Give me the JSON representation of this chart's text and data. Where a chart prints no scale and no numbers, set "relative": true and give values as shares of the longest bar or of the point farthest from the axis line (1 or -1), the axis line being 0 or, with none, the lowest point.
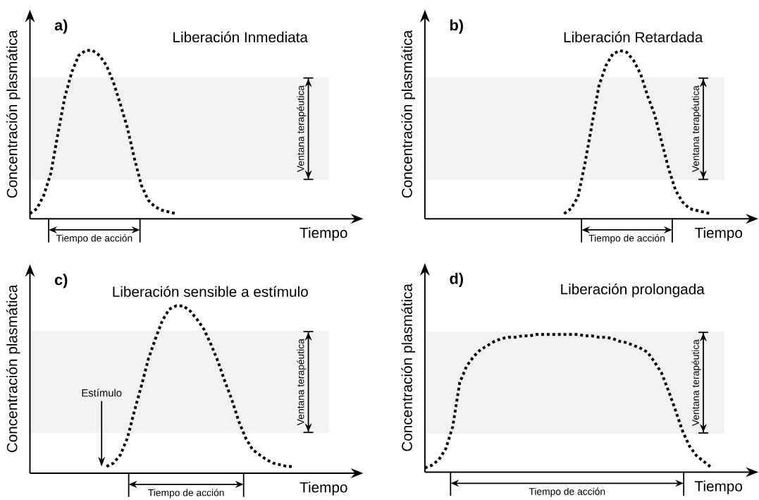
{
  "chart_data": [
    {
      "type": "line",
      "relative": true,
      "title": "Liberación Inmediata",
      "xlabel": "Tiempo",
      "ylabel": "Concentración plasmática",
      "color": "#000000",
      "line_style": "dotted",
      "categories": [
        null,
        null,
        null,
        null,
        null,
        null,
        null,
        null,
        null,
        null,
        null,
        null,
        null,
        null,
        null,
        null,
        null,
        null,
        null,
        null,
        null,
        null,
        null,
        null,
        null,
        null,
        null,
        null,
        null,
        null,
        null,
        null,
        null,
        null,
        null,
        null,
        null,
        null,
        null,
        null,
        null,
        null,
        null,
        null
      ],
      "values": [
        0.03,
        0.06,
        0.14,
        0.27,
        0.5,
        0.72,
        0.87,
        0.97,
        1.0,
        1.0,
        0.97,
        0.91,
        0.81,
        0.68,
        0.54,
        0.36,
        0.2,
        0.11,
        0.07,
        0.05,
        0.04,
        0.03,
        null,
        null,
        null,
        null,
        null,
        null,
        null,
        null,
        null,
        null,
        null,
        null,
        null,
        null,
        null,
        null,
        null,
        null,
        null,
        null,
        null,
        null
      ],
      "bands": [
        {
          "axis": "y",
          "from": 0.23,
          "to": 0.84,
          "label": "Ventana terapéutica",
          "color": "#f2f2f2"
        }
      ],
      "annotations": [
        "a)",
        "Tiempo de acción"
      ]
    },
    {
      "type": "line",
      "relative": true,
      "title": "Liberación Retardada",
      "xlabel": "Tiempo",
      "ylabel": "Concentración plasmática",
      "color": "#000000",
      "line_style": "dotted",
      "categories": [
        null,
        null,
        null,
        null,
        null,
        null,
        null,
        null,
        null,
        null,
        null,
        null,
        null,
        null,
        null,
        null,
        null,
        null,
        null,
        null,
        null,
        null,
        null,
        null,
        null,
        null,
        null,
        null,
        null,
        null,
        null,
        null,
        null,
        null,
        null,
        null,
        null,
        null,
        null,
        null,
        null,
        null,
        null,
        null
      ],
      "values": [
        null,
        null,
        null,
        null,
        null,
        null,
        null,
        null,
        null,
        null,
        null,
        null,
        null,
        null,
        null,
        null,
        null,
        null,
        null,
        null,
        0.03,
        0.06,
        0.13,
        0.33,
        0.56,
        0.79,
        0.91,
        0.98,
        1.0,
        0.99,
        0.94,
        0.86,
        0.73,
        0.62,
        0.46,
        0.3,
        0.17,
        0.1,
        0.06,
        0.05,
        0.04,
        0.03,
        null,
        null
      ],
      "bands": [
        {
          "axis": "y",
          "from": 0.23,
          "to": 0.84,
          "label": "Ventana terapéutica",
          "color": "#f2f2f2"
        }
      ],
      "annotations": [
        "b)",
        "Tiempo de acción"
      ]
    },
    {
      "type": "line",
      "relative": true,
      "title": "Liberación sensible a estímulo",
      "xlabel": "Tiempo",
      "ylabel": "Concentración plasmática",
      "color": "#000000",
      "line_style": "dotted",
      "categories": [
        null,
        null,
        null,
        null,
        null,
        null,
        null,
        null,
        null,
        null,
        null,
        null,
        null,
        null,
        null,
        null,
        null,
        null,
        null,
        null,
        null,
        null,
        null,
        null,
        null,
        null,
        null,
        null,
        null,
        null,
        null,
        null,
        null,
        null,
        null,
        null,
        null,
        null,
        null,
        null,
        null,
        null,
        null,
        null
      ],
      "values": [
        null,
        null,
        null,
        null,
        null,
        null,
        null,
        null,
        null,
        null,
        null,
        0.04,
        0.06,
        0.11,
        0.21,
        0.37,
        0.52,
        0.68,
        0.8,
        0.91,
        0.98,
        1.0,
        1.0,
        0.97,
        0.92,
        0.86,
        0.77,
        0.67,
        0.55,
        0.44,
        0.31,
        0.21,
        0.14,
        0.11,
        0.08,
        0.06,
        0.05,
        0.04,
        0.04,
        null,
        null,
        null,
        null,
        null
      ],
      "bands": [
        {
          "axis": "y",
          "from": 0.24,
          "to": 0.85,
          "label": "Ventana terapéutica",
          "color": "#f2f2f2"
        }
      ],
      "annotations": [
        "c)",
        "Estímulo",
        "Tiempo de acción"
      ]
    },
    {
      "type": "line",
      "relative": true,
      "title": "Liberación prolongada",
      "xlabel": "Tiempo",
      "ylabel": "Concentración plasmática",
      "color": "#000000",
      "line_style": "dotted",
      "categories": [
        null,
        null,
        null,
        null,
        null,
        null,
        null,
        null,
        null,
        null,
        null,
        null,
        null,
        null,
        null,
        null,
        null,
        null,
        null,
        null,
        null,
        null,
        null,
        null,
        null,
        null,
        null,
        null,
        null,
        null,
        null,
        null,
        null,
        null,
        null,
        null,
        null,
        null,
        null,
        null,
        null,
        null,
        null,
        null
      ],
      "values": [
        0.03,
        0.05,
        0.09,
        0.17,
        0.33,
        0.65,
        0.77,
        0.84,
        0.89,
        0.92,
        0.95,
        0.97,
        0.98,
        0.98,
        0.99,
        0.99,
        1.0,
        1.0,
        1.0,
        1.0,
        1.0,
        1.0,
        1.0,
        0.99,
        0.99,
        0.98,
        0.98,
        0.97,
        0.95,
        0.94,
        0.92,
        0.9,
        0.87,
        0.8,
        0.72,
        0.59,
        0.45,
        0.3,
        0.19,
        0.12,
        0.08,
        0.04,
        null,
        null
      ],
      "bands": [
        {
          "axis": "y",
          "from": 0.28,
          "to": 1.02,
          "label": "Ventana terapéutica",
          "color": "#f2f2f2"
        }
      ],
      "annotations": [
        "d)",
        "Tiempo de acción"
      ]
    }
  ]
}
